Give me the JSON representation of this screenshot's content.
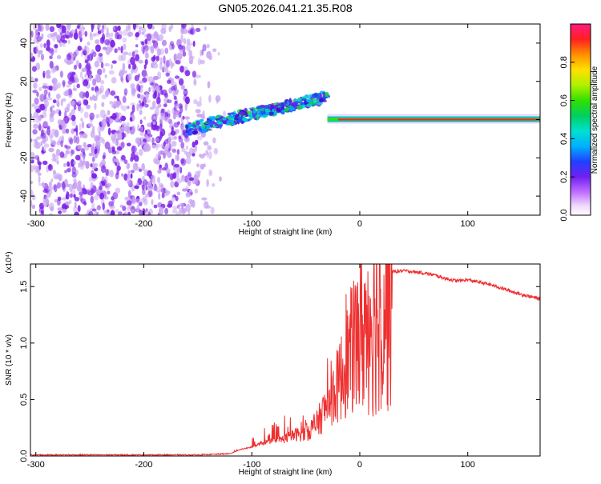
{
  "title": "GN05.2026.041.21.35.R08",
  "chart_data": [
    {
      "type": "heatmap",
      "xlabel": "Height of straight line (km)",
      "ylabel": "Frequency (Hz)",
      "xlim": [
        -305,
        167
      ],
      "ylim": [
        -50,
        50
      ],
      "xticks": [
        -300,
        -200,
        -100,
        0,
        100
      ],
      "yticks": [
        -40,
        -20,
        0,
        20,
        40
      ],
      "colorbar": {
        "label": "Normalized spectral amplitude",
        "range": [
          0.0,
          1.0
        ],
        "ticks": [
          "0.0",
          "0.2",
          "0.4",
          "0.6",
          "0.8"
        ]
      },
      "colors": {
        "noise": "#7b1fe6",
        "noise_light": "#c9a6f2",
        "peak": "#ff1a4a"
      },
      "features": {
        "noise_region_x": [
          -305,
          -135
        ],
        "rising_signal": {
          "x": [
            -160,
            -30
          ],
          "freq": [
            -5,
            12
          ]
        },
        "carrier_line": {
          "x": [
            -30,
            167
          ],
          "freq": 0,
          "amplitude": 1.0
        }
      }
    },
    {
      "type": "line",
      "xlabel": "Height of straight line (km)",
      "ylabel": "SNR (10 * v/v)",
      "y_multiplier": "(x10⁴)",
      "xlim": [
        -305,
        167
      ],
      "ylim": [
        0,
        1.7
      ],
      "xticks": [
        -300,
        -200,
        -100,
        0,
        100
      ],
      "yticks": [
        0.0,
        0.5,
        1.0,
        1.5
      ],
      "series": [
        {
          "color": "#ee3030",
          "x": [
            -305,
            -250,
            -200,
            -150,
            -120,
            -110,
            -100,
            -90,
            -80,
            -70,
            -60,
            -50,
            -40,
            -30,
            -20,
            -10,
            0,
            10,
            20,
            30,
            40,
            50,
            60,
            70,
            80,
            90,
            100,
            110,
            120,
            130,
            140,
            150,
            167
          ],
          "values": [
            0.01,
            0.01,
            0.01,
            0.01,
            0.02,
            0.06,
            0.08,
            0.12,
            0.14,
            0.16,
            0.2,
            0.22,
            0.3,
            0.5,
            0.7,
            1.0,
            1.2,
            1.45,
            1.58,
            1.63,
            1.64,
            1.63,
            1.62,
            1.6,
            1.57,
            1.55,
            1.56,
            1.54,
            1.52,
            1.49,
            1.46,
            1.43,
            1.39
          ]
        }
      ]
    }
  ]
}
